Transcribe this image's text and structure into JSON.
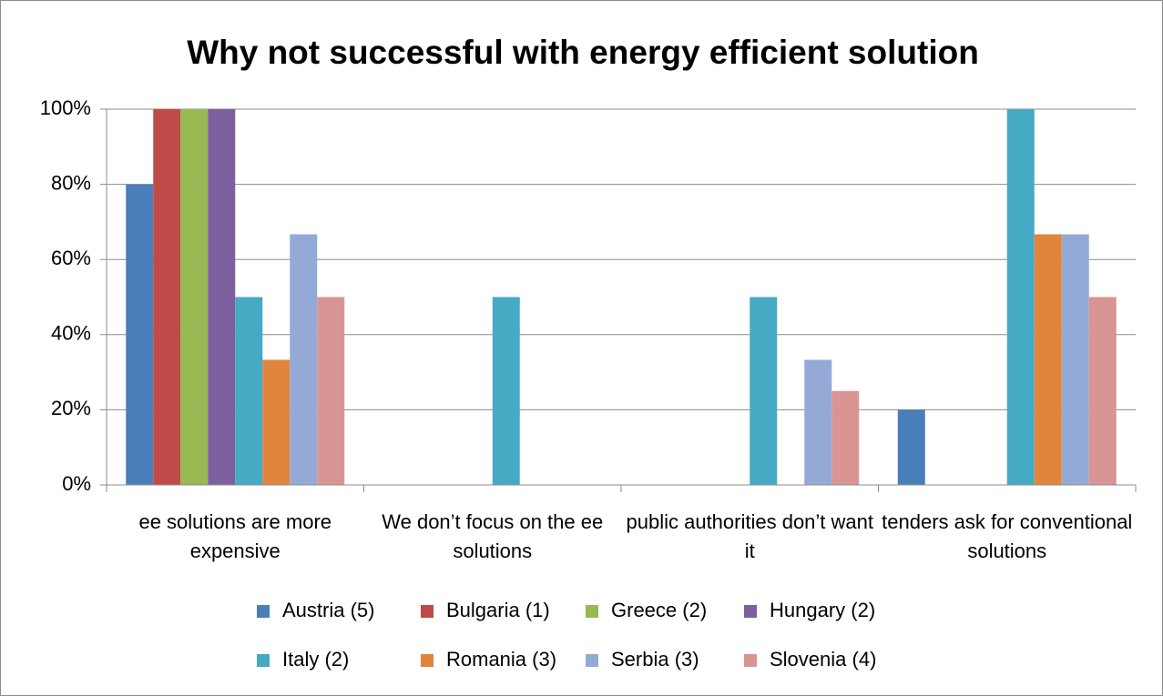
{
  "chart_data": {
    "type": "bar",
    "title": "Why not successful with energy efficient solution",
    "categories": [
      "ee solutions are more expensive",
      "We don’t focus on the ee solutions",
      "public authorities don’t want it",
      "tenders ask for conventional solutions"
    ],
    "series": [
      {
        "name": "Austria (5)",
        "color": "#4a7ebb",
        "values": [
          80,
          0,
          0,
          20
        ]
      },
      {
        "name": "Bulgaria (1)",
        "color": "#be4b48",
        "values": [
          100,
          0,
          0,
          0
        ]
      },
      {
        "name": "Greece (2)",
        "color": "#98b954",
        "values": [
          100,
          0,
          0,
          0
        ]
      },
      {
        "name": "Hungary (2)",
        "color": "#7d5fa0",
        "values": [
          100,
          0,
          0,
          0
        ]
      },
      {
        "name": "Italy (2)",
        "color": "#46aac5",
        "values": [
          50,
          50,
          50,
          100
        ]
      },
      {
        "name": "Romania (3)",
        "color": "#e0853b",
        "values": [
          33.3,
          0,
          0,
          66.7
        ]
      },
      {
        "name": "Serbia (3)",
        "color": "#94aad6",
        "values": [
          66.7,
          0,
          33.3,
          66.7
        ]
      },
      {
        "name": "Slovenia (4)",
        "color": "#d99594",
        "values": [
          50,
          0,
          25,
          50
        ]
      }
    ],
    "ylim": [
      0,
      100
    ],
    "yticks": [
      {
        "value": 0,
        "label": "0%"
      },
      {
        "value": 20,
        "label": "20%"
      },
      {
        "value": 40,
        "label": "40%"
      },
      {
        "value": 60,
        "label": "60%"
      },
      {
        "value": 80,
        "label": "80%"
      },
      {
        "value": 100,
        "label": "100%"
      }
    ],
    "grid": true,
    "legend": "bottom"
  }
}
